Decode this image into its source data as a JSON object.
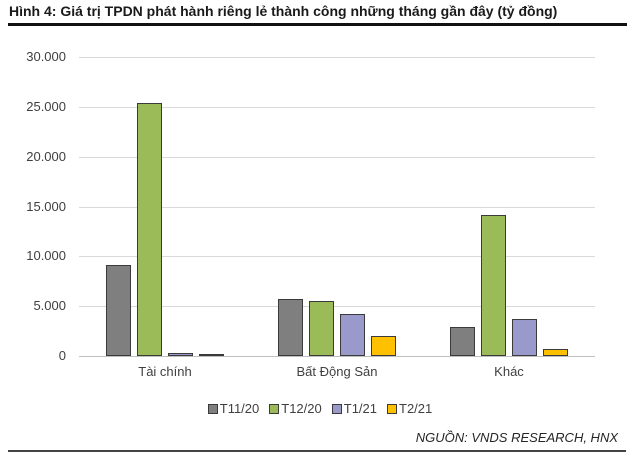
{
  "title": "Hình 4: Giá trị TPDN phát hành riêng lẻ thành công những tháng gần đây (tỷ đồng)",
  "source": "NGUỒN: VNDS RESEARCH, HNX",
  "chart_data": {
    "type": "bar",
    "title": "Hình 4: Giá trị TPDN phát hành riêng lẻ thành công những tháng gần đây (tỷ đồng)",
    "xlabel": "",
    "ylabel": "",
    "ylim": [
      0,
      30000
    ],
    "yticks": [
      0,
      5000,
      10000,
      15000,
      20000,
      25000,
      30000
    ],
    "ytick_labels": [
      "0",
      "5.000",
      "10.000",
      "15.000",
      "20.000",
      "25.000",
      "30.000"
    ],
    "grid": true,
    "legend_position": "bottom",
    "categories": [
      "Tài chính",
      "Bất Động Sản",
      "Khác"
    ],
    "series": [
      {
        "name": "T11/20",
        "color": "#7f7f7f",
        "values": [
          9100,
          5750,
          2900
        ]
      },
      {
        "name": "T12/20",
        "color": "#9bbb59",
        "values": [
          25400,
          5550,
          14100
        ]
      },
      {
        "name": "T1/21",
        "color": "#9999cc",
        "values": [
          300,
          4250,
          3750
        ]
      },
      {
        "name": "T2/21",
        "color": "#ffc000",
        "values": [
          200,
          2050,
          750
        ]
      }
    ]
  }
}
